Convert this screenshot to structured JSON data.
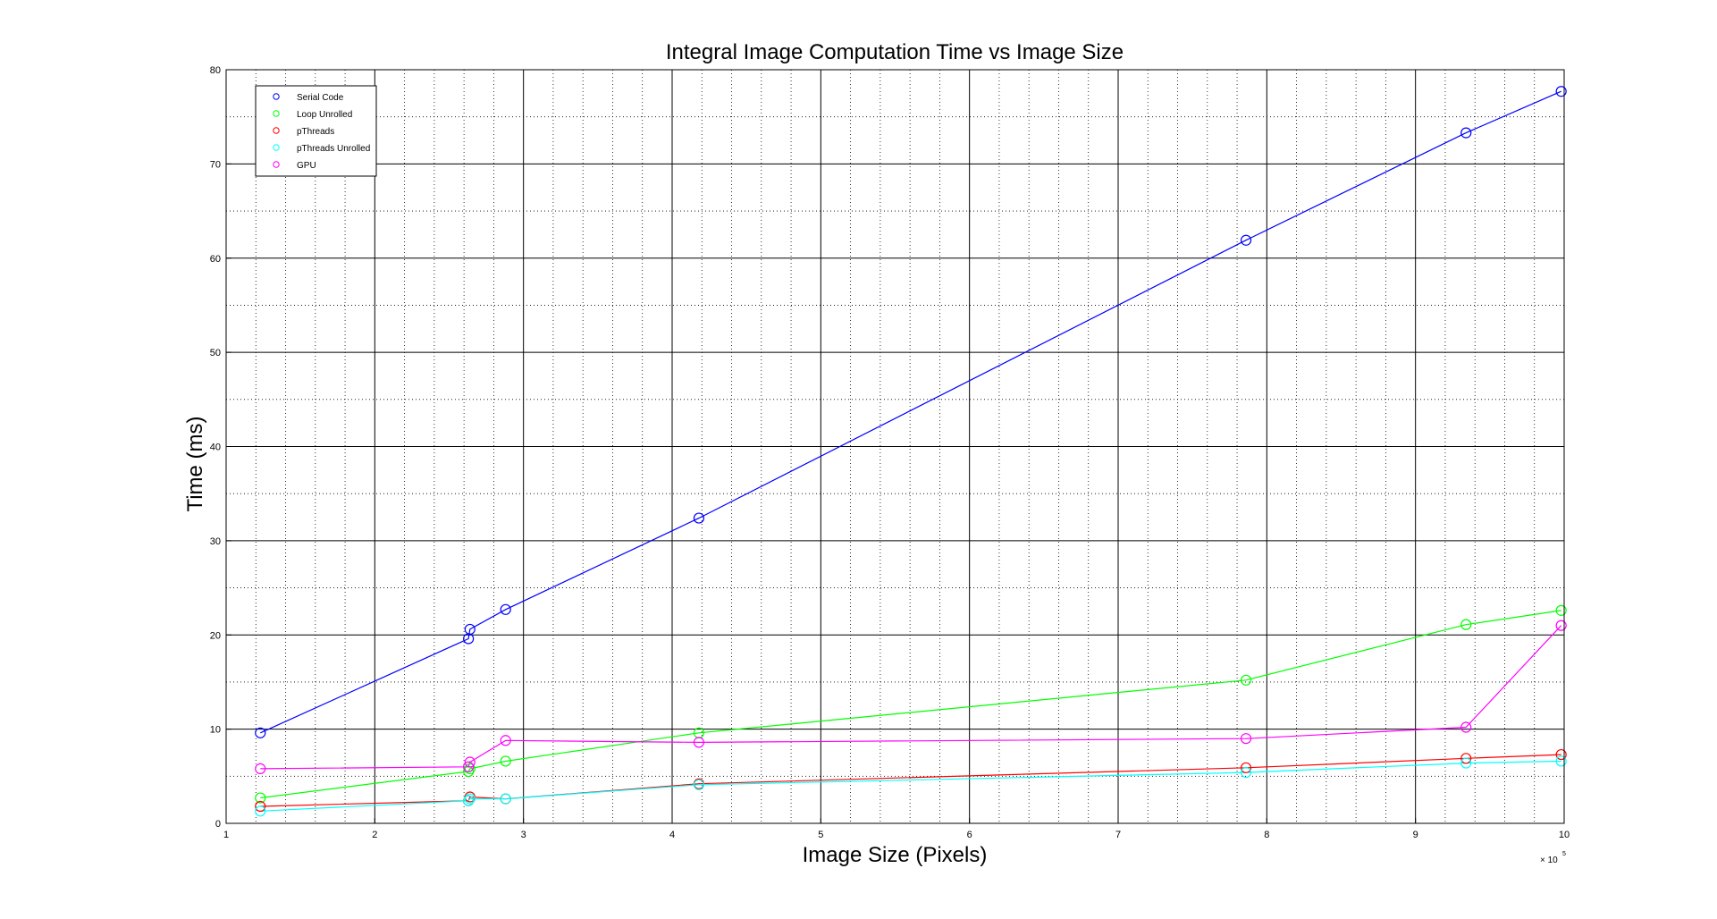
{
  "chart_data": {
    "type": "line",
    "title": "Integral Image Computation Time vs Image Size",
    "xlabel": "Image Size (Pixels)",
    "ylabel": "Time (ms)",
    "xlim": [
      1,
      10
    ],
    "ylim": [
      0,
      80
    ],
    "x_ticks": [
      "1",
      "2",
      "3",
      "4",
      "5",
      "6",
      "7",
      "8",
      "9",
      "10"
    ],
    "y_ticks": [
      "0",
      "10",
      "20",
      "30",
      "40",
      "50",
      "60",
      "70",
      "80"
    ],
    "x_exponent_base": "× 10",
    "x_exponent_power": "5",
    "grid": true,
    "legend_position": "top-left",
    "series": [
      {
        "name": "Serial Code",
        "color": "#0000ff",
        "x": [
          1.23,
          2.63,
          2.64,
          2.88,
          4.18,
          7.86,
          9.34,
          9.98
        ],
        "y": [
          9.6,
          19.6,
          20.6,
          22.7,
          32.4,
          61.9,
          73.3,
          77.7
        ]
      },
      {
        "name": "Loop Unrolled",
        "color": "#00ff00",
        "x": [
          1.23,
          2.63,
          2.64,
          2.88,
          4.18,
          7.86,
          9.34,
          9.98
        ],
        "y": [
          2.7,
          5.5,
          5.8,
          6.6,
          9.6,
          15.2,
          21.1,
          22.6
        ]
      },
      {
        "name": "pThreads",
        "color": "#ff0000",
        "x": [
          1.23,
          2.63,
          2.64,
          2.88,
          4.18,
          7.86,
          9.34,
          9.98
        ],
        "y": [
          1.8,
          2.4,
          2.8,
          2.6,
          4.2,
          5.9,
          6.9,
          7.3
        ]
      },
      {
        "name": "pThreads Unrolled",
        "color": "#00ffff",
        "x": [
          1.23,
          2.63,
          2.64,
          2.88,
          4.18,
          7.86,
          9.34,
          9.98
        ],
        "y": [
          1.3,
          2.4,
          2.6,
          2.6,
          4.1,
          5.4,
          6.4,
          6.6
        ]
      },
      {
        "name": "GPU",
        "color": "#ff00ff",
        "x": [
          1.23,
          2.63,
          2.64,
          2.88,
          4.18,
          7.86,
          9.34,
          9.98
        ],
        "y": [
          5.8,
          6.0,
          6.5,
          8.8,
          8.6,
          9.0,
          10.2,
          21.0
        ]
      }
    ]
  }
}
